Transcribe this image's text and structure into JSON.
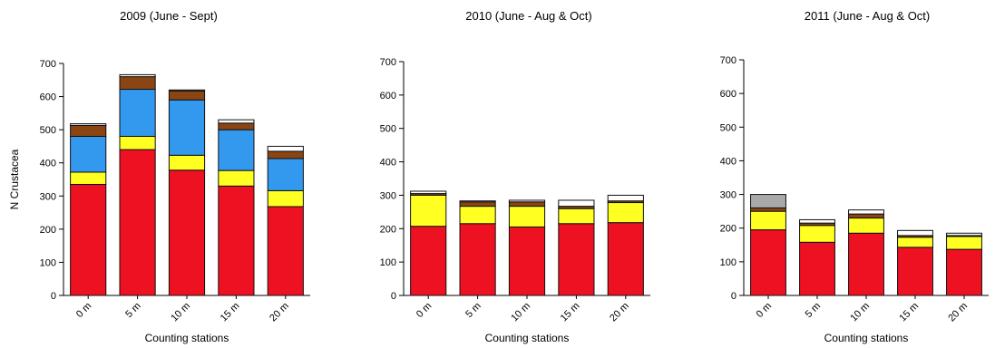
{
  "palette": {
    "red": "#ee1122",
    "yellow": "#ffff22",
    "blue": "#3399ee",
    "brown": "#8b4513",
    "white": "#ffffff",
    "gray": "#a9a9a9",
    "outline": "#111111"
  },
  "chart_data": [
    {
      "type": "bar",
      "stacked": true,
      "title": "2009 (June - Sept)",
      "xlabel": "Counting stations",
      "ylabel": "N Crustacea",
      "ylim": [
        0,
        700
      ],
      "yticks": [
        0,
        100,
        200,
        300,
        400,
        500,
        600,
        700
      ],
      "categories": [
        "0 m",
        "5 m",
        "10 m",
        "15 m",
        "20 m"
      ],
      "series": [
        {
          "color": "#ee1122",
          "values": [
            335,
            440,
            378,
            330,
            268
          ]
        },
        {
          "color": "#ffff22",
          "values": [
            37,
            40,
            45,
            47,
            48
          ]
        },
        {
          "color": "#3399ee",
          "values": [
            108,
            142,
            167,
            123,
            97
          ]
        },
        {
          "color": "#8b4513",
          "values": [
            33,
            38,
            27,
            20,
            22
          ]
        },
        {
          "color": "#ffffff",
          "values": [
            5,
            6,
            3,
            10,
            15
          ]
        }
      ]
    },
    {
      "type": "bar",
      "stacked": true,
      "title": "2010 (June - Aug & Oct)",
      "xlabel": "Counting stations",
      "ylabel": "",
      "ylim": [
        0,
        700
      ],
      "yticks": [
        0,
        100,
        200,
        300,
        400,
        500,
        600,
        700
      ],
      "categories": [
        "0 m",
        "5 m",
        "10 m",
        "15 m",
        "20 m"
      ],
      "series": [
        {
          "color": "#ee1122",
          "values": [
            207,
            215,
            205,
            215,
            218
          ]
        },
        {
          "color": "#ffff22",
          "values": [
            93,
            52,
            62,
            45,
            60
          ]
        },
        {
          "color": "#8b4513",
          "values": [
            5,
            13,
            13,
            7,
            5
          ]
        },
        {
          "color": "#ffffff",
          "values": [
            7,
            3,
            5,
            18,
            17
          ]
        }
      ]
    },
    {
      "type": "bar",
      "stacked": true,
      "title": "2011 (June - Aug & Oct)",
      "xlabel": "Counting stations",
      "ylabel": "",
      "ylim": [
        0,
        700
      ],
      "yticks": [
        0,
        100,
        200,
        300,
        400,
        500,
        600,
        700
      ],
      "categories": [
        "0 m",
        "5 m",
        "10 m",
        "15 m",
        "20 m"
      ],
      "series": [
        {
          "color": "#ee1122",
          "values": [
            195,
            158,
            185,
            143,
            137
          ]
        },
        {
          "color": "#ffff22",
          "values": [
            55,
            50,
            45,
            30,
            38
          ]
        },
        {
          "color": "#8b4513",
          "values": [
            10,
            7,
            12,
            5,
            3
          ]
        },
        {
          "color": "#ffffff",
          "values": [
            0,
            10,
            12,
            15,
            7
          ]
        },
        {
          "color": "#a9a9a9",
          "values": [
            40,
            0,
            0,
            0,
            0
          ]
        }
      ]
    }
  ]
}
